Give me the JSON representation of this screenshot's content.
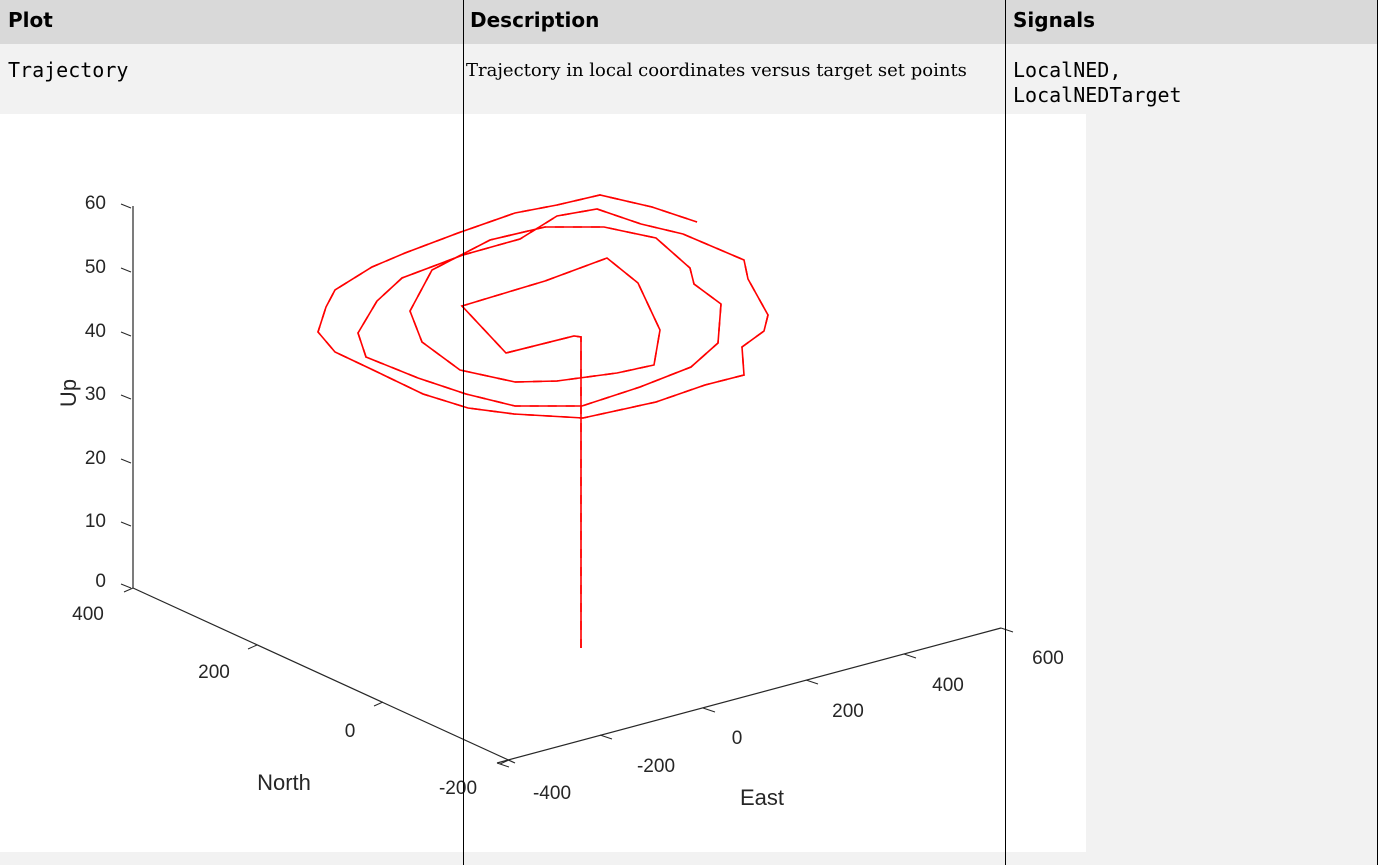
{
  "table": {
    "headers": [
      "Plot",
      "Description",
      "Signals"
    ],
    "row": {
      "plot": "Trajectory",
      "description": "Trajectory in local coordinates versus target set points",
      "signals_line1": "LocalNED,",
      "signals_line2": "LocalNEDTarget"
    }
  },
  "chart_data": {
    "type": "line",
    "projection": "3d",
    "xlabel": "North",
    "ylabel": "East",
    "zlabel": "Up",
    "x_ticks": [
      "400",
      "200",
      "0",
      "-200"
    ],
    "y_ticks": [
      "-400",
      "-200",
      "0",
      "200",
      "400",
      "600"
    ],
    "z_ticks": [
      "0",
      "10",
      "20",
      "30",
      "40",
      "50",
      "60"
    ],
    "zlim": [
      0,
      60
    ],
    "series": [
      {
        "color": "#ff0000",
        "style": "solid"
      },
      {
        "color": "#00ff00",
        "style": "dashed"
      }
    ],
    "trajectory": {
      "vertical_segment": {
        "up": [
          0,
          40
        ]
      },
      "spiral_turns": 4
    }
  }
}
